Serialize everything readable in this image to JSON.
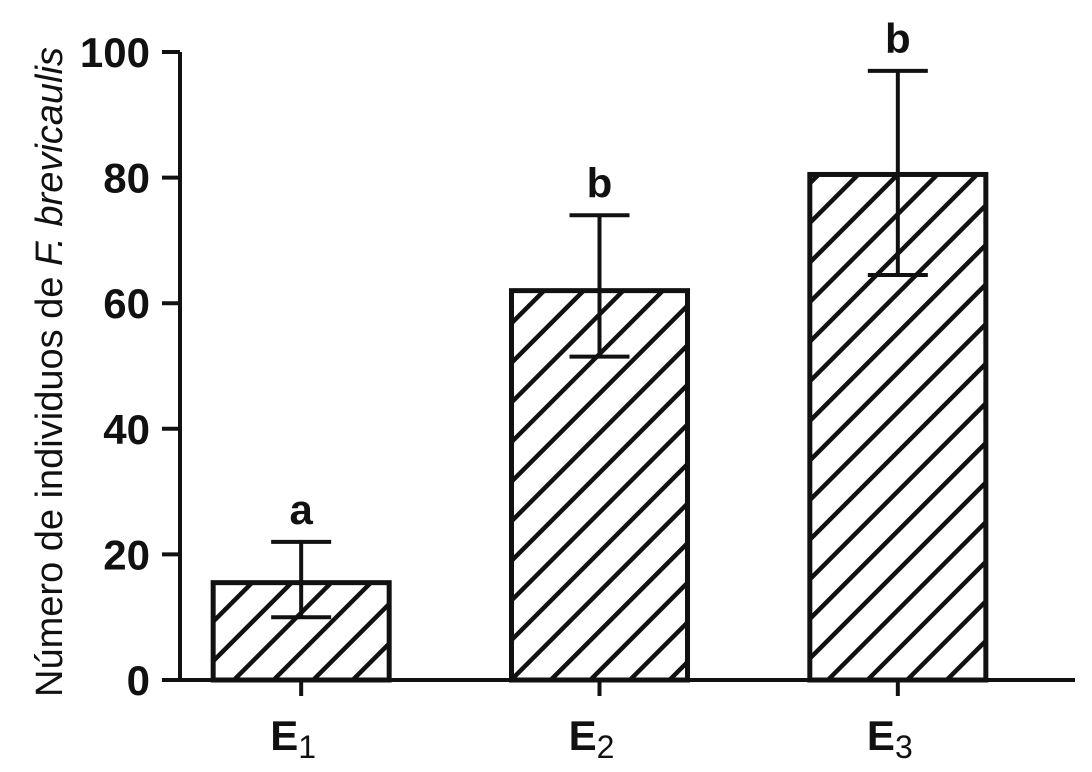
{
  "chart_data": {
    "type": "bar",
    "categories": [
      {
        "main": "E",
        "sub": "1"
      },
      {
        "main": "E",
        "sub": "2"
      },
      {
        "main": "E",
        "sub": "3"
      }
    ],
    "values": [
      15.5,
      62,
      80.5
    ],
    "error_upper": [
      22,
      74,
      97
    ],
    "error_lower": [
      10,
      51.5,
      64.5
    ],
    "significance_letters": [
      "a",
      "b",
      "b"
    ],
    "ylabel_prefix": "Número de individuos de ",
    "ylabel_italic": "F. brevicaulis",
    "ylim": [
      0,
      100
    ],
    "yticks": [
      "0",
      "20",
      "40",
      "60",
      "80",
      "100"
    ],
    "ytick_values": [
      0,
      20,
      40,
      60,
      80,
      100
    ],
    "bar_fill": "hatched",
    "bar_stroke_color": "#111111",
    "grid": false,
    "legend": "none"
  }
}
